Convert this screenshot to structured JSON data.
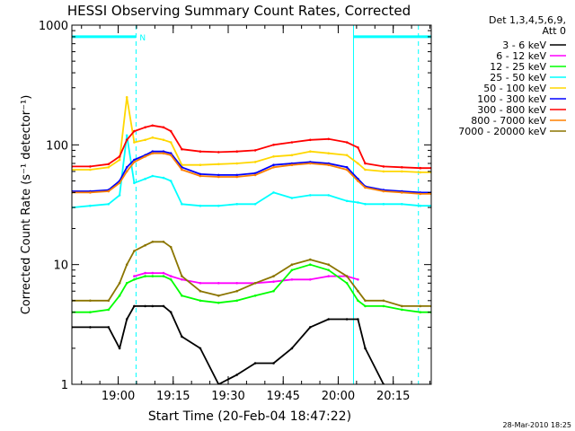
{
  "chart_data": {
    "type": "line",
    "title": "HESSI Observing Summary Count Rates, Corrected",
    "xlabel": "Start Time (20-Feb-04 18:47:22)",
    "ylabel": "Corrected Count Rate (s⁻¹ detector⁻¹)",
    "yscale": "log",
    "ylim": [
      1,
      1000
    ],
    "xlim_minutes": [
      0,
      98
    ],
    "x_tick_labels": [
      "19:00",
      "19:15",
      "19:30",
      "19:45",
      "20:00",
      "20:15"
    ],
    "x_tick_minutes": [
      12.63,
      27.63,
      42.63,
      57.63,
      72.63,
      87.63
    ],
    "y_tick_labels": [
      "1",
      "10",
      "100",
      "1000"
    ],
    "y_tick_values": [
      1,
      10,
      100,
      1000
    ],
    "grid": false,
    "legend_position": "right",
    "legend_header_line1": "Det 1,3,4,5,6,9,",
    "legend_header_line2": "Att 0",
    "footer_text": "28-Mar-2010 18:25",
    "night_marker_label": "N",
    "night_bar_level": 800,
    "night_intervals_minutes": [
      [
        0,
        17.5
      ],
      [
        76.8,
        98
      ]
    ],
    "night_marker_minutes": [
      17.5,
      76.8,
      94.5
    ],
    "x_sample_minutes": [
      0,
      5,
      10,
      13,
      15,
      17,
      20,
      22,
      25,
      27,
      30,
      35,
      40,
      45,
      50,
      55,
      60,
      65,
      70,
      75,
      78,
      80,
      85,
      90,
      95,
      98
    ],
    "series": [
      {
        "name": "3 - 6 keV",
        "color": "#000000",
        "values": [
          3,
          3,
          3,
          2,
          3.5,
          4.5,
          4.5,
          4.5,
          4.5,
          4,
          2.5,
          2,
          1,
          1.2,
          1.5,
          1.5,
          2,
          3,
          3.5,
          3.5,
          3.5,
          2,
          1,
          null,
          null,
          null
        ]
      },
      {
        "name": "6 - 12 keV",
        "color": "#ff00ff",
        "values": [
          null,
          null,
          null,
          null,
          null,
          8,
          8.5,
          8.5,
          8.5,
          8,
          7.5,
          7,
          7,
          7,
          7,
          7.2,
          7.5,
          7.5,
          8,
          8,
          7.5,
          null,
          null,
          null,
          null,
          null
        ]
      },
      {
        "name": "12 - 25 keV",
        "color": "#00ff00",
        "values": [
          4,
          4,
          4.2,
          5.5,
          7,
          7.5,
          8,
          8,
          8,
          7.5,
          5.5,
          5,
          4.8,
          5,
          5.5,
          6,
          9,
          10,
          9,
          7,
          5,
          4.5,
          4.5,
          4.2,
          4,
          4
        ]
      },
      {
        "name": "25 - 50 keV",
        "color": "#00ffff",
        "values": [
          30,
          31,
          32,
          38,
          120,
          48,
          52,
          55,
          53,
          50,
          32,
          31,
          31,
          32,
          32,
          40,
          36,
          38,
          38,
          34,
          33,
          32,
          32,
          32,
          31,
          31
        ]
      },
      {
        "name": "50 - 100 keV",
        "color": "#ffd700",
        "values": [
          62,
          62,
          65,
          75,
          250,
          105,
          110,
          115,
          110,
          105,
          68,
          68,
          69,
          70,
          72,
          80,
          82,
          88,
          85,
          82,
          70,
          62,
          60,
          60,
          59,
          59
        ]
      },
      {
        "name": "100 - 300 keV",
        "color": "#0000ff",
        "values": [
          41,
          41,
          42,
          50,
          65,
          75,
          82,
          88,
          88,
          85,
          65,
          57,
          56,
          56,
          58,
          68,
          70,
          72,
          70,
          65,
          52,
          45,
          42,
          41,
          40,
          40
        ]
      },
      {
        "name": "300 - 800 keV",
        "color": "#ff0000",
        "values": [
          66,
          66,
          69,
          80,
          110,
          130,
          140,
          145,
          140,
          130,
          92,
          88,
          87,
          88,
          90,
          100,
          105,
          110,
          112,
          105,
          95,
          70,
          66,
          65,
          64,
          64
        ]
      },
      {
        "name": "800 - 7000 keV",
        "color": "#ff8000",
        "values": [
          40,
          40,
          41,
          48,
          60,
          72,
          80,
          85,
          85,
          82,
          62,
          55,
          54,
          54,
          56,
          65,
          68,
          70,
          68,
          62,
          50,
          44,
          41,
          40,
          39,
          39
        ]
      },
      {
        "name": "7000 - 20000 keV",
        "color": "#8b7500",
        "values": [
          5,
          5,
          5,
          7,
          10,
          13,
          14.5,
          15.5,
          15.5,
          14,
          8,
          6,
          5.5,
          6,
          7,
          8,
          10,
          11,
          10,
          8,
          6,
          5,
          5,
          4.5,
          4.5,
          4.5
        ]
      }
    ]
  }
}
